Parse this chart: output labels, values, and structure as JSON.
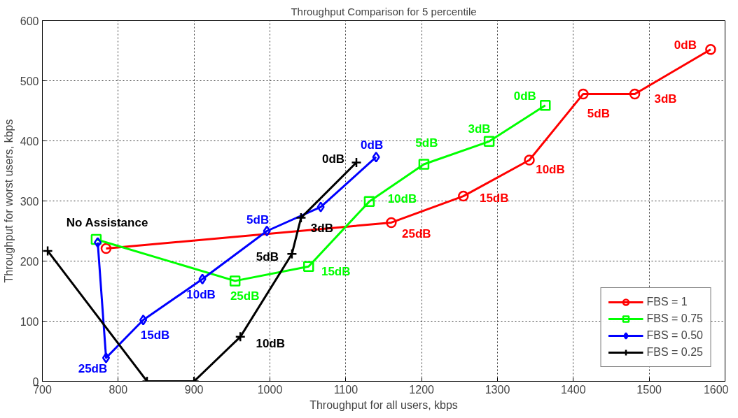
{
  "chart_data": {
    "type": "line",
    "title": "Throughput Comparison for 5 percentile",
    "xlabel": "Throughput for all users, kbps",
    "ylabel": "Throughput for worst users, kbps",
    "xlim": [
      700,
      1600
    ],
    "xticks": [
      700,
      800,
      900,
      1000,
      1100,
      1200,
      1300,
      1400,
      1500,
      1600
    ],
    "ylim": [
      0,
      600
    ],
    "yticks": [
      0,
      100,
      200,
      300,
      400,
      500,
      600
    ],
    "grid": true,
    "legend": "bottom right",
    "line_style": "solid",
    "series": [
      {
        "name": "FBS = 1",
        "color": "#ff0000",
        "marker": "circle",
        "x": [
          784,
          1160,
          1255,
          1342,
          1413,
          1481,
          1581
        ],
        "values": [
          221,
          264,
          308,
          368,
          478,
          478,
          552
        ]
      },
      {
        "name": "FBS = 0.75",
        "color": "#00ff00",
        "marker": "square",
        "x": [
          771,
          954,
          1051,
          1131,
          1203,
          1289,
          1363
        ],
        "values": [
          236,
          167,
          191,
          299,
          361,
          399,
          459
        ]
      },
      {
        "name": "FBS = 0.50",
        "color": "#0000ff",
        "marker": "diamond",
        "x": [
          773,
          784,
          833,
          911,
          996,
          1067,
          1140
        ],
        "values": [
          231,
          39,
          102,
          170,
          250,
          290,
          373
        ]
      },
      {
        "name": "FBS = 0.25",
        "color": "#000000",
        "marker": "cross",
        "x": [
          707,
          838,
          900,
          961,
          1029,
          1041,
          1114
        ],
        "values": [
          217,
          0,
          0,
          74,
          212,
          272,
          364
        ]
      }
    ],
    "annotations": [
      {
        "text": "No Assistance",
        "x": 771,
        "y": 236
      },
      {
        "text": "25dB",
        "x": 1160,
        "y": 264
      },
      {
        "text": "15dB",
        "x": 1255,
        "y": 308
      },
      {
        "text": "10dB",
        "x": 1342,
        "y": 368
      },
      {
        "text": "5dB",
        "x": 1413,
        "y": 478
      },
      {
        "text": "3dB",
        "x": 1481,
        "y": 478
      },
      {
        "text": "0dB",
        "x": 1581,
        "y": 552
      },
      {
        "text": "25dB",
        "x": 954,
        "y": 167
      },
      {
        "text": "15dB",
        "x": 1051,
        "y": 191
      },
      {
        "text": "10dB",
        "x": 1131,
        "y": 299
      },
      {
        "text": "5dB",
        "x": 1203,
        "y": 361
      },
      {
        "text": "3dB",
        "x": 1289,
        "y": 399
      },
      {
        "text": "0dB",
        "x": 1363,
        "y": 459
      },
      {
        "text": "25dB",
        "x": 784,
        "y": 39
      },
      {
        "text": "15dB",
        "x": 833,
        "y": 102
      },
      {
        "text": "10dB",
        "x": 911,
        "y": 170
      },
      {
        "text": "5dB",
        "x": 996,
        "y": 250
      },
      {
        "text": "0dB",
        "x": 1140,
        "y": 373
      },
      {
        "text": "10dB",
        "x": 961,
        "y": 74
      },
      {
        "text": "5dB",
        "x": 1029,
        "y": 212
      },
      {
        "text": "3dB",
        "x": 1041,
        "y": 272
      },
      {
        "text": "0dB",
        "x": 1114,
        "y": 364
      }
    ]
  }
}
